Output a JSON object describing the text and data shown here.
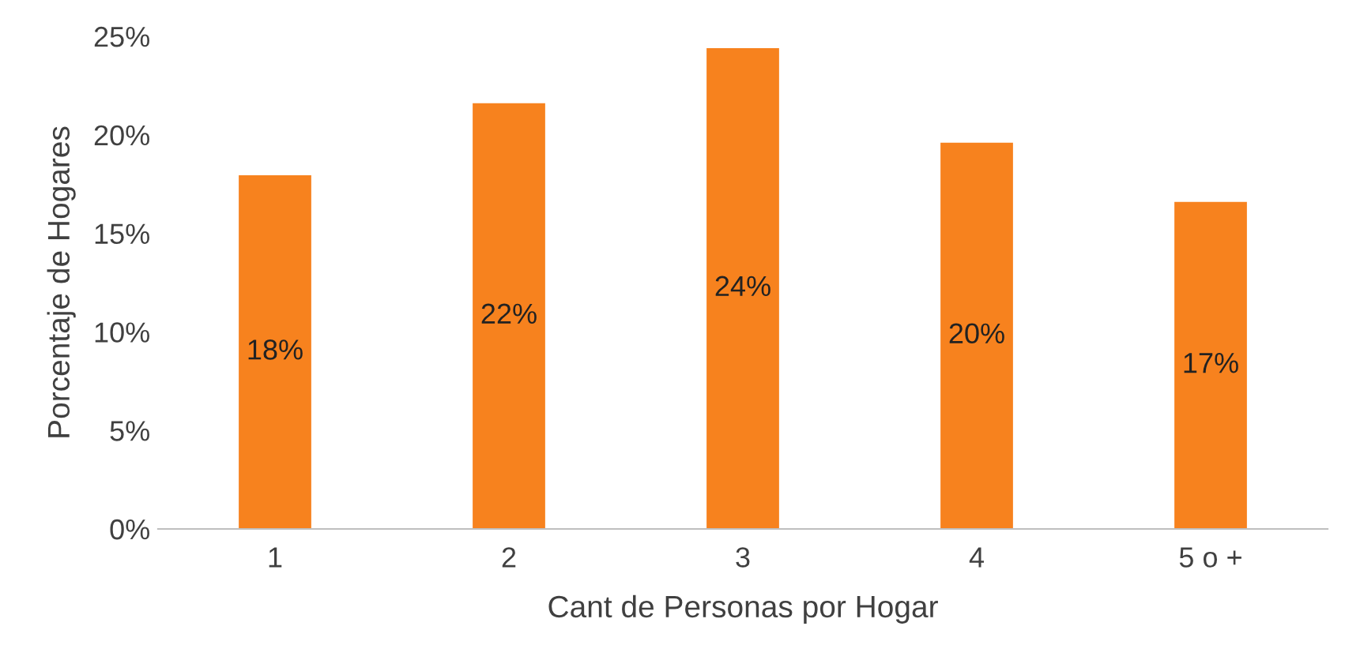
{
  "chart_data": {
    "type": "bar",
    "xlabel": "Cant de Personas por Hogar",
    "ylabel": "Porcentaje de Hogares",
    "categories": [
      "1",
      "2",
      "3",
      "4",
      "5 o +"
    ],
    "values": [
      17.95,
      21.6,
      24.4,
      19.6,
      16.6
    ],
    "value_labels": [
      "18%",
      "22%",
      "24%",
      "20%",
      "17%"
    ],
    "color": "#f7821e",
    "ylim": [
      0,
      25
    ],
    "yticks": [
      {
        "value": 0,
        "label": "0%"
      },
      {
        "value": 5,
        "label": "5%"
      },
      {
        "value": 10,
        "label": "10%"
      },
      {
        "value": 15,
        "label": "15%"
      },
      {
        "value": 20,
        "label": "20%"
      },
      {
        "value": 25,
        "label": "25%"
      }
    ],
    "grid": false,
    "legend": false
  }
}
